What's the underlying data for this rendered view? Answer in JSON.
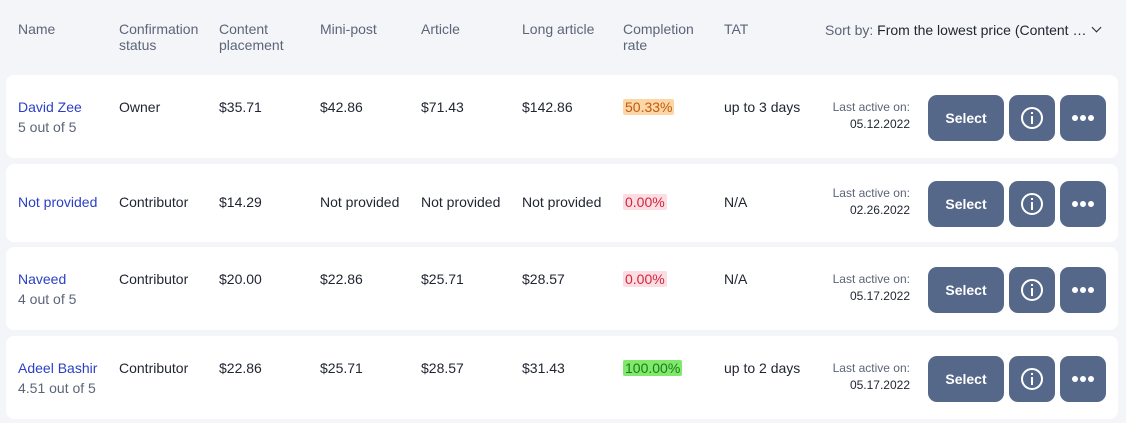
{
  "columns": {
    "name": "Name",
    "confirmation": "Confirmation status",
    "content_placement": "Content placement",
    "mini_post": "Mini-post",
    "article": "Article",
    "long_article": "Long article",
    "completion_rate": "Completion rate",
    "tat": "TAT"
  },
  "sort": {
    "label": "Sort by:",
    "value": "From the lowest price (Content placement)"
  },
  "active_label": "Last active on:",
  "buttons": {
    "select": "Select"
  },
  "rows": [
    {
      "name": "David Zee",
      "rating": "5 out of 5",
      "status": "Owner",
      "content_placement": "$35.71",
      "mini_post": "$42.86",
      "article": "$71.43",
      "long_article": "$142.86",
      "completion_rate": "50.33%",
      "rate_level": "medium",
      "tat": "up to 3 days",
      "last_active": "05.12.2022"
    },
    {
      "name": "Not provided",
      "rating": "",
      "status": "Contributor",
      "content_placement": "$14.29",
      "mini_post": "Not provided",
      "article": "Not provided",
      "long_article": "Not provided",
      "completion_rate": "0.00%",
      "rate_level": "zero",
      "tat": "N/A",
      "last_active": "02.26.2022"
    },
    {
      "name": "Naveed",
      "rating": "4 out of 5",
      "status": "Contributor",
      "content_placement": "$20.00",
      "mini_post": "$22.86",
      "article": "$25.71",
      "long_article": "$28.57",
      "completion_rate": "0.00%",
      "rate_level": "zero",
      "tat": "N/A",
      "last_active": "05.17.2022"
    },
    {
      "name": "Adeel Bashir",
      "rating": "4.51 out of 5",
      "status": "Contributor",
      "content_placement": "$22.86",
      "mini_post": "$25.71",
      "article": "$28.57",
      "long_article": "$31.43",
      "completion_rate": "100.00%",
      "rate_level": "full",
      "tat": "up to 2 days",
      "last_active": "05.17.2022"
    }
  ]
}
